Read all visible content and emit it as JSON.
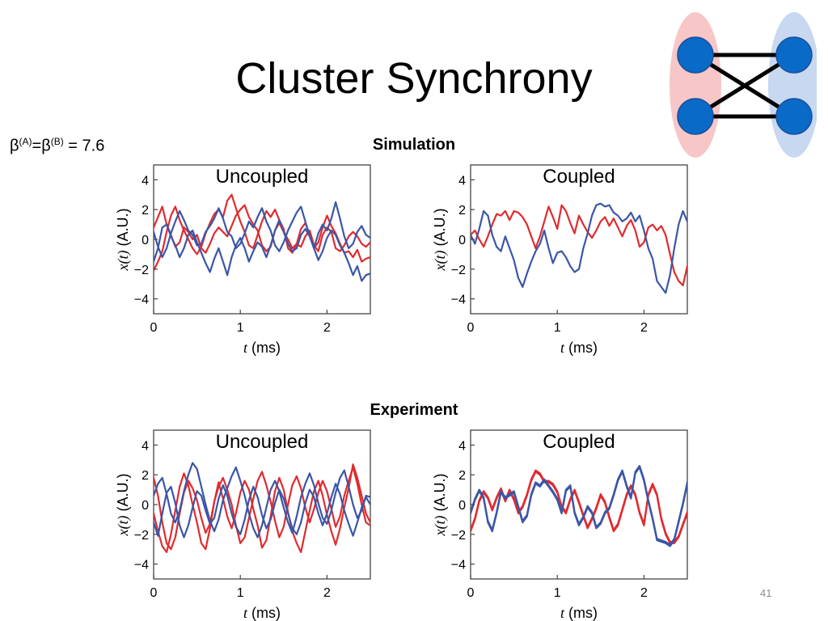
{
  "slide": {
    "title": "Cluster Synchrony",
    "beta_base": "β",
    "beta_sup_a": "(A)",
    "beta_eq": "=",
    "beta_sup_b": "(B)",
    "beta_value": " = 7.6",
    "simulation_label": "Simulation",
    "experiment_label": "Experiment",
    "page_number": "41"
  },
  "colors": {
    "red": "#e02b2f",
    "blue": "#3b56a6",
    "cluster_a_fill": "#f7c7c7",
    "cluster_b_fill": "#c7d8f0",
    "node": "#0a6ac8",
    "node_stroke": "#1d4f9a",
    "edge": "#000000"
  },
  "diagram": {
    "nodes": [
      "node-a1",
      "node-a2",
      "node-b1",
      "node-b2"
    ],
    "edges": [
      [
        "a1",
        "b1"
      ],
      [
        "a2",
        "b2"
      ],
      [
        "a1",
        "b2"
      ],
      [
        "a2",
        "b1"
      ]
    ]
  },
  "chart_data": [
    {
      "type": "line",
      "title": "Uncoupled",
      "xlabel_var": "t",
      "xlabel_unit": " (ms)",
      "ylabel_var": "x(t)",
      "ylabel_unit": " (A.U.)",
      "xlim": [
        0,
        2.5
      ],
      "ylim": [
        -5,
        5
      ],
      "xticks": [
        0,
        1,
        2
      ],
      "yticks": [
        4,
        2,
        0,
        -2,
        -4
      ],
      "ytick_labels": [
        "4",
        "2",
        "0",
        "−2",
        "−4"
      ],
      "dt": 0.05,
      "series": [
        {
          "color": "red",
          "values": [
            0.8,
            1.5,
            2.2,
            1.0,
            0.3,
            -0.5,
            -0.2,
            0.8,
            0.5,
            0.0,
            0.3,
            -0.6,
            -0.9,
            -0.3,
            0.4,
            0.8,
            0.5,
            0.2,
            0.9,
            1.6,
            2.0,
            2.3,
            1.5,
            1.0,
            0.6,
            -0.4,
            -0.8,
            -0.5,
            0.6,
            1.1,
            0.5,
            0.0,
            -0.6,
            -0.3,
            -0.5,
            0.2,
            0.6,
            -0.4,
            -0.8,
            0.3,
            0.8,
            0.5,
            -0.6,
            -0.8,
            -0.4,
            0.2,
            0.5,
            0.2,
            -0.3,
            -0.5,
            -0.2
          ]
        },
        {
          "color": "red",
          "values": [
            -2.1,
            -1.5,
            -0.8,
            0.5,
            1.6,
            2.2,
            1.3,
            0.6,
            0.0,
            -0.6,
            -1.0,
            -0.5,
            0.4,
            1.1,
            1.7,
            2.0,
            1.5,
            2.6,
            3.0,
            2.1,
            1.2,
            0.5,
            -0.4,
            -0.6,
            0.3,
            1.2,
            1.9,
            1.5,
            2.0,
            1.3,
            0.7,
            -0.6,
            -0.9,
            -0.3,
            0.7,
            1.1,
            0.3,
            -0.6,
            -0.2,
            0.8,
            1.6,
            0.9,
            0.4,
            -0.3,
            -0.9,
            -0.8,
            -1.2,
            -0.7,
            -1.5,
            -1.3,
            -1.2
          ]
        },
        {
          "color": "blue",
          "values": [
            0.5,
            -0.5,
            -1.2,
            -0.6,
            0.4,
            1.2,
            1.9,
            1.3,
            0.6,
            0.3,
            -0.4,
            -0.3,
            0.5,
            0.9,
            1.4,
            2.1,
            1.4,
            0.5,
            0.2,
            -0.6,
            -0.3,
            0.4,
            1.2,
            0.8,
            1.5,
            2.1,
            1.2,
            0.6,
            -0.4,
            -0.8,
            -0.2,
            0.6,
            1.2,
            1.8,
            2.2,
            1.2,
            0.2,
            -0.6,
            0.4,
            1.0,
            0.6,
            1.4,
            2.5,
            1.4,
            0.2,
            -0.6,
            -0.3,
            0.5,
            0.9,
            0.3,
            0.1
          ]
        },
        {
          "color": "blue",
          "values": [
            -1.5,
            -0.6,
            0.8,
            1.0,
            0.2,
            -0.4,
            -1.2,
            -0.6,
            0.3,
            0.6,
            -0.2,
            -0.9,
            -1.6,
            -2.2,
            -1.3,
            -0.6,
            -1.5,
            -2.4,
            -1.2,
            -0.4,
            0.1,
            -0.6,
            -1.5,
            -0.8,
            -0.2,
            -0.5,
            -1.2,
            -0.4,
            0.6,
            1.3,
            0.5,
            -0.3,
            -0.8,
            -0.6,
            0.3,
            0.7,
            0.2,
            -0.6,
            -1.4,
            -0.8,
            0.1,
            0.6,
            0.3,
            -0.4,
            -0.9,
            -1.6,
            -2.4,
            -1.8,
            -2.8,
            -2.4,
            -2.3
          ]
        }
      ]
    },
    {
      "type": "line",
      "title": "Coupled",
      "xlabel_var": "t",
      "xlabel_unit": " (ms)",
      "ylabel_var": "x(t)",
      "ylabel_unit": " (A.U.)",
      "xlim": [
        0,
        2.5
      ],
      "ylim": [
        -5,
        5
      ],
      "xticks": [
        0,
        1,
        2
      ],
      "yticks": [
        4,
        2,
        0,
        -2,
        -4
      ],
      "ytick_labels": [
        "4",
        "2",
        "0",
        "−2",
        "−4"
      ],
      "dt": 0.05,
      "series": [
        {
          "color": "red",
          "values": [
            0.3,
            0.6,
            0.0,
            -0.5,
            0.2,
            1.0,
            1.7,
            1.6,
            1.9,
            1.3,
            1.9,
            1.8,
            1.5,
            1.0,
            0.2,
            -0.6,
            0.2,
            1.2,
            2.2,
            1.5,
            0.7,
            2.3,
            1.9,
            1.1,
            0.4,
            1.6,
            1.0,
            0.5,
            0.1,
            0.6,
            1.2,
            1.5,
            0.9,
            1.4,
            0.8,
            0.2,
            0.9,
            1.3,
            0.6,
            -0.5,
            -0.2,
            0.8,
            1.0,
            0.6,
            0.9,
            0.3,
            -1.0,
            -2.2,
            -2.8,
            -3.1,
            -1.8
          ]
        },
        {
          "color": "blue",
          "values": [
            0.3,
            -0.3,
            0.7,
            1.9,
            1.6,
            0.3,
            -0.5,
            -0.8,
            0.2,
            -0.6,
            -1.4,
            -2.6,
            -3.2,
            -2.3,
            -1.5,
            -0.8,
            -0.3,
            0.6,
            -0.6,
            -1.6,
            -0.9,
            -0.8,
            -1.2,
            -1.8,
            -2.2,
            -2.0,
            -0.6,
            0.4,
            1.6,
            2.3,
            2.4,
            2.2,
            2.3,
            1.8,
            1.6,
            1.2,
            1.4,
            1.8,
            1.2,
            1.6,
            0.6,
            -0.6,
            -1.3,
            -2.8,
            -3.2,
            -3.6,
            -2.4,
            -0.6,
            1.0,
            1.9,
            1.2
          ]
        }
      ]
    },
    {
      "type": "line",
      "title": "Uncoupled",
      "xlabel_var": "t",
      "xlabel_unit": " (ms)",
      "ylabel_var": "x(t)",
      "ylabel_unit": " (A.U.)",
      "xlim": [
        0,
        2.5
      ],
      "ylim": [
        -5,
        5
      ],
      "xticks": [
        0,
        1,
        2
      ],
      "yticks": [
        4,
        2,
        0,
        -2,
        -4
      ],
      "ytick_labels": [
        "4",
        "2",
        "0",
        "−2",
        "−4"
      ],
      "dt": 0.05,
      "series": [
        {
          "color": "red",
          "values": [
            1.8,
            0.6,
            -1.2,
            -2.6,
            -3.0,
            -2.2,
            -0.6,
            0.8,
            1.6,
            1.1,
            0.3,
            -0.9,
            -1.9,
            -1.3,
            0.2,
            1.2,
            1.8,
            1.0,
            0.0,
            -1.4,
            -2.6,
            -2.2,
            -0.9,
            0.4,
            1.6,
            2.2,
            1.3,
            0.2,
            -1.1,
            -2.2,
            -1.5,
            0.0,
            1.3,
            1.9,
            1.1,
            -0.2,
            -1.2,
            -0.3,
            0.8,
            1.6,
            0.9,
            -0.3,
            -1.5,
            -0.8,
            0.6,
            1.6,
            2.5,
            1.4,
            0.0,
            -1.2,
            -1.4
          ]
        },
        {
          "color": "red",
          "values": [
            -0.6,
            -1.8,
            -2.8,
            -3.2,
            -2.0,
            -0.4,
            1.2,
            2.1,
            1.3,
            0.0,
            -1.2,
            -2.6,
            -3.0,
            -1.6,
            0.2,
            1.5,
            0.4,
            -0.8,
            -1.6,
            -0.6,
            0.8,
            1.6,
            1.0,
            -0.3,
            -1.4,
            -2.9,
            -2.4,
            -0.8,
            0.9,
            1.8,
            1.0,
            -0.5,
            -1.8,
            -2.6,
            -3.2,
            -1.8,
            -0.4,
            0.9,
            1.6,
            0.6,
            -0.7,
            -1.8,
            -2.7,
            -1.6,
            -0.2,
            1.1,
            2.7,
            1.8,
            0.6,
            -0.6,
            -1.2
          ]
        },
        {
          "color": "blue",
          "values": [
            0.6,
            1.4,
            1.8,
            0.7,
            -0.6,
            -1.2,
            -0.4,
            0.9,
            2.0,
            2.8,
            2.4,
            1.2,
            0.0,
            -1.1,
            -1.8,
            -1.0,
            0.3,
            1.1,
            1.9,
            2.5,
            1.6,
            0.6,
            -0.6,
            -1.6,
            -2.2,
            -1.4,
            -0.2,
            1.0,
            1.6,
            0.9,
            -0.2,
            -1.2,
            -1.9,
            -0.8,
            0.5,
            1.4,
            2.1,
            1.3,
            0.1,
            -0.9,
            -1.3,
            -0.4,
            0.8,
            1.8,
            2.3,
            1.2,
            0.0,
            -0.9,
            -0.4,
            0.6,
            0.5
          ]
        },
        {
          "color": "blue",
          "values": [
            -1.2,
            -2.1,
            -0.6,
            0.8,
            1.2,
            0.1,
            -1.4,
            -2.2,
            -1.4,
            -0.2,
            0.9,
            0.6,
            -0.4,
            -1.3,
            -0.9,
            0.4,
            1.3,
            0.6,
            -0.6,
            -1.5,
            -2.0,
            -1.0,
            0.3,
            1.2,
            0.5,
            -0.7,
            -1.6,
            -1.0,
            0.1,
            1.0,
            0.4,
            -0.6,
            -1.6,
            -2.0,
            -1.2,
            0.1,
            1.0,
            0.5,
            -0.6,
            -1.4,
            -0.6,
            0.5,
            1.4,
            0.7,
            -0.4,
            -1.3,
            -2.1,
            -1.2,
            -0.2,
            0.5,
            0.0
          ]
        }
      ]
    },
    {
      "type": "line",
      "title": "Coupled",
      "xlabel_var": "t",
      "xlabel_unit": " (ms)",
      "ylabel_var": "x(t)",
      "ylabel_unit": " (A.U.)",
      "xlim": [
        0,
        2.5
      ],
      "ylim": [
        -5,
        5
      ],
      "xticks": [
        0,
        1,
        2
      ],
      "yticks": [
        4,
        2,
        0,
        -2,
        -4
      ],
      "ytick_labels": [
        "4",
        "2",
        "0",
        "−2",
        "−4"
      ],
      "dt": 0.05,
      "series": [
        {
          "color": "red",
          "values": [
            -1.8,
            -1.0,
            0.2,
            0.8,
            0.4,
            -0.4,
            0.4,
            1.0,
            0.2,
            0.9,
            0.3,
            -0.6,
            -0.2,
            0.6,
            1.6,
            2.2,
            2.0,
            1.5,
            1.5,
            1.3,
            0.8,
            -0.2,
            -0.6,
            0.3,
            0.9,
            0.1,
            -0.8,
            -1.6,
            -1.0,
            -0.3,
            0.6,
            0.1,
            -0.9,
            -1.8,
            -1.4,
            -0.4,
            0.6,
            1.2,
            0.6,
            -0.6,
            -1.4,
            0.6,
            1.3,
            0.6,
            -1.0,
            -2.0,
            -2.6,
            -2.6,
            -2.2,
            -1.4,
            -0.6
          ]
        },
        {
          "color": "red",
          "values": [
            -1.7,
            -0.9,
            0.3,
            0.9,
            0.5,
            -0.3,
            0.5,
            1.1,
            0.3,
            1.0,
            0.4,
            -0.5,
            -0.1,
            0.7,
            1.7,
            2.3,
            2.1,
            1.6,
            1.6,
            1.4,
            0.9,
            -0.1,
            -0.5,
            0.4,
            1.0,
            0.2,
            -0.7,
            -1.5,
            -0.9,
            -0.2,
            0.7,
            0.2,
            -0.8,
            -1.7,
            -1.3,
            -0.3,
            0.7,
            1.3,
            0.7,
            -0.5,
            -1.3,
            0.7,
            1.4,
            0.7,
            -0.9,
            -1.9,
            -2.5,
            -2.5,
            -2.1,
            -1.3,
            -0.5
          ]
        },
        {
          "color": "blue",
          "values": [
            -0.6,
            0.3,
            0.9,
            0.4,
            -1.2,
            -1.8,
            -0.6,
            0.8,
            0.4,
            0.6,
            0.8,
            -0.2,
            -1.2,
            -0.8,
            0.6,
            1.4,
            1.2,
            1.6,
            1.2,
            0.8,
            0.3,
            -0.6,
            0.9,
            1.2,
            -0.6,
            -1.4,
            -0.9,
            -0.2,
            -0.6,
            -1.6,
            -1.3,
            -0.6,
            -0.3,
            0.6,
            1.6,
            2.2,
            1.2,
            0.4,
            2.1,
            2.5,
            1.6,
            0.2,
            -1.0,
            -2.4,
            -2.5,
            -2.6,
            -2.8,
            -2.4,
            -1.2,
            0.0,
            1.4
          ]
        },
        {
          "color": "blue",
          "values": [
            -0.5,
            0.4,
            1.0,
            0.5,
            -1.1,
            -1.7,
            -0.5,
            0.9,
            0.5,
            0.7,
            0.9,
            -0.1,
            -1.1,
            -0.7,
            0.7,
            1.5,
            1.3,
            1.7,
            1.3,
            0.9,
            0.4,
            -0.5,
            1.0,
            1.3,
            -0.5,
            -1.3,
            -0.8,
            -0.1,
            -0.5,
            -1.5,
            -1.2,
            -0.5,
            -0.2,
            0.7,
            1.7,
            2.3,
            1.3,
            0.5,
            2.2,
            2.6,
            1.7,
            0.3,
            -0.9,
            -2.3,
            -2.4,
            -2.5,
            -2.7,
            -2.3,
            -1.1,
            0.1,
            1.5
          ]
        }
      ]
    }
  ]
}
